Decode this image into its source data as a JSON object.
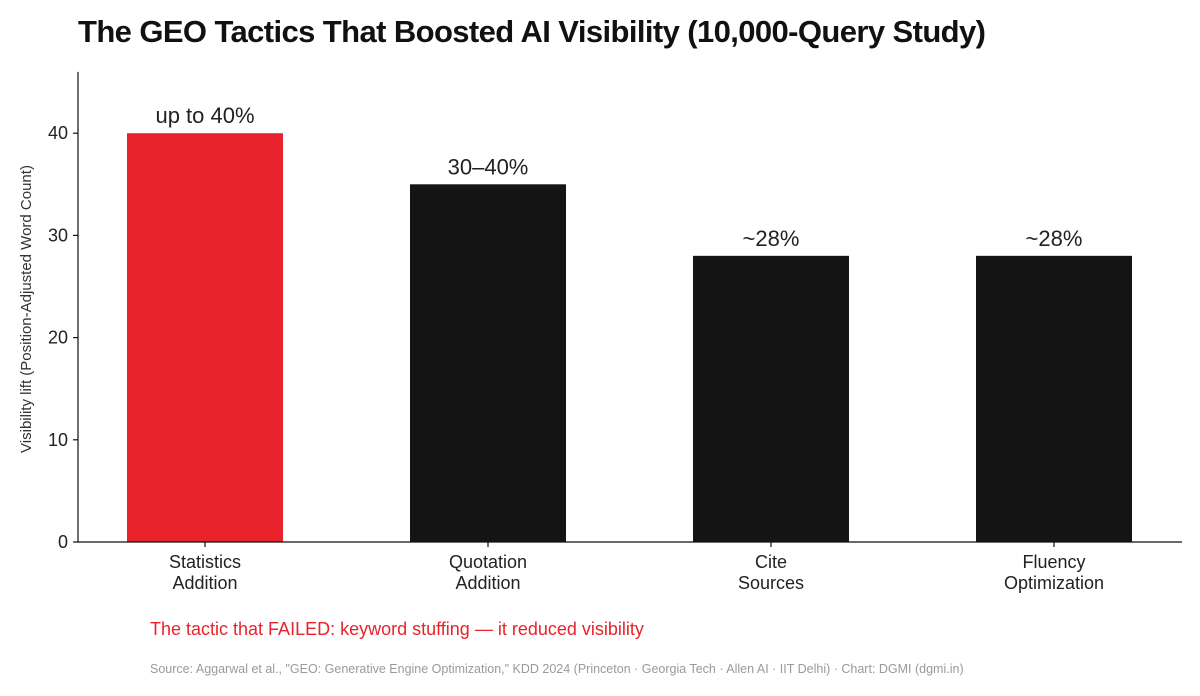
{
  "chart_data": {
    "type": "bar",
    "title": "The GEO Tactics That Boosted AI Visibility (10,000-Query Study)",
    "ylabel": "Visibility lift (Position-Adjusted Word Count)",
    "xlabel": "",
    "ylim": [
      0,
      46
    ],
    "yticks": [
      0,
      10,
      20,
      30,
      40
    ],
    "grid": false,
    "categories": [
      [
        "Statistics",
        "Addition"
      ],
      [
        "Quotation",
        "Addition"
      ],
      [
        "Cite",
        "Sources"
      ],
      [
        "Fluency",
        "Optimization"
      ]
    ],
    "values": [
      40,
      35,
      28,
      28
    ],
    "data_labels": [
      "up to 40%",
      "30–40%",
      "~28%",
      "~28%"
    ],
    "bar_colors": [
      "#e8232b",
      "#141414",
      "#141414",
      "#141414"
    ]
  },
  "note": {
    "text": "The tactic that FAILED: keyword stuffing — it reduced visibility",
    "color": "#e8232b"
  },
  "source": "Source: Aggarwal et al., \"GEO: Generative Engine Optimization,\" KDD 2024 (Princeton · Georgia Tech · Allen AI · IIT Delhi) · Chart: DGMI (dgmi.in)"
}
